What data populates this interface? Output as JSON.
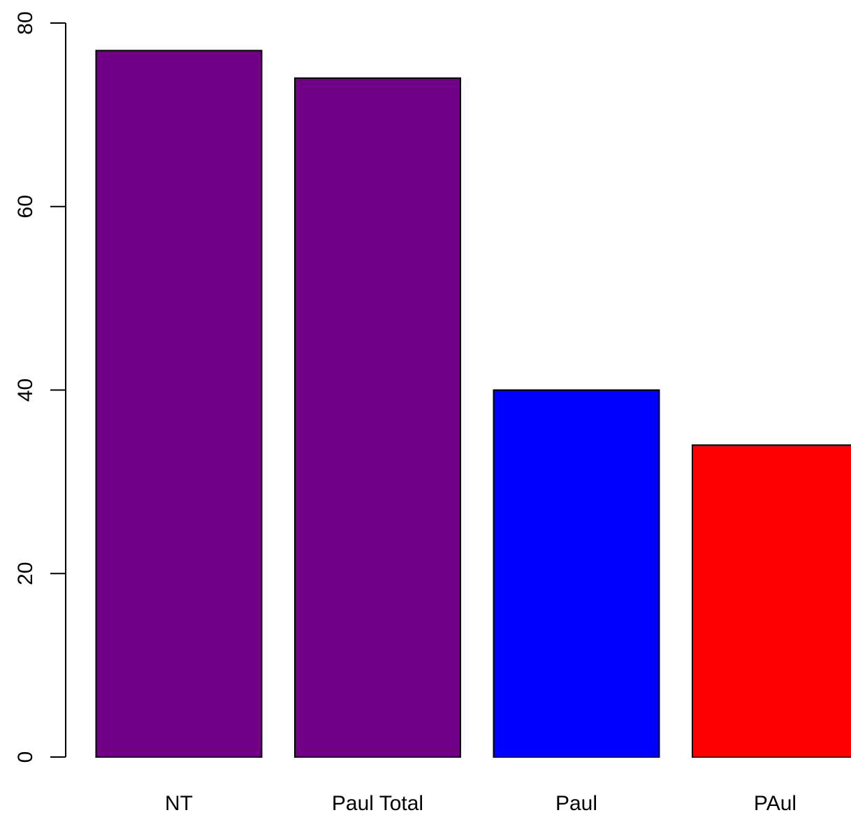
{
  "chart_data": {
    "type": "bar",
    "title": "",
    "xlabel": "",
    "ylabel": "",
    "categories": [
      "NT",
      "Paul Total",
      "Paul",
      "PAul"
    ],
    "values": [
      77,
      74,
      40,
      34
    ],
    "colors": [
      "#720087",
      "#720087",
      "#0000FF",
      "#FF0000"
    ],
    "bar_outline": "#000000",
    "ylim": [
      0,
      80
    ],
    "yticks": [
      0,
      20,
      40,
      60,
      80
    ],
    "ytick_labels": [
      "0",
      "20",
      "40",
      "60",
      "80"
    ],
    "grid": false,
    "legend": "none"
  }
}
